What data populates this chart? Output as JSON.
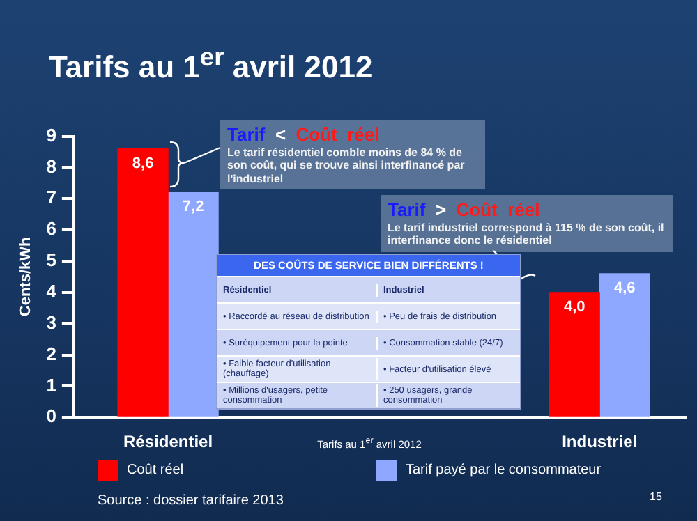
{
  "chart_data": {
    "type": "bar",
    "title": "Tarifs au 1$^{er}$ avril 2012",
    "xlabel": "Tarifs au 1$^{er}$ avril 2012",
    "ylabel": "Cents/kWh",
    "categories": [
      "Résidentiel",
      "Industriel"
    ],
    "series": [
      {
        "name": "Coût réel",
        "color": "#ff0000",
        "values": [
          8.6,
          4.0
        ],
        "value_labels": [
          "8,6",
          "4,0"
        ]
      },
      {
        "name": "Tarif payé par le consommateur",
        "color": "#8fa8ff",
        "values": [
          7.2,
          4.6
        ],
        "value_labels": [
          "7,2",
          "4,6"
        ]
      }
    ],
    "ylim": [
      0,
      9
    ],
    "yticks": [
      0,
      1,
      2,
      3,
      4,
      5,
      6,
      7,
      8,
      9
    ],
    "grid": false,
    "legend": "bottom",
    "annotations": [
      "Tarif < Coût réel",
      "Le tarif résidentiel comble moins de 84 % de son coût, qui se trouve ainsi interfinancé par l'industriel",
      "Tarif > Coût réel",
      "Le tarif industriel correspond à 115 % de son coût, il  interfinance donc le résidentiel",
      "DES COÛTS DE SERVICE BIEN DIFFÉRENTS !",
      "Résidentiel",
      "Industriel",
      "• Raccordé au réseau de distribution",
      "• Peu de frais de distribution",
      "• Suréquipement pour la pointe",
      "• Consommation stable (24/7)",
      "• Faible facteur d'utilisation (chauffage)",
      "• Facteur d'utilisation élevé",
      "• Millions d'usagers, petite consommation",
      "• 250 usagers, grande consommation",
      "Source : dossier tarifaire 2013",
      "15"
    ]
  }
}
